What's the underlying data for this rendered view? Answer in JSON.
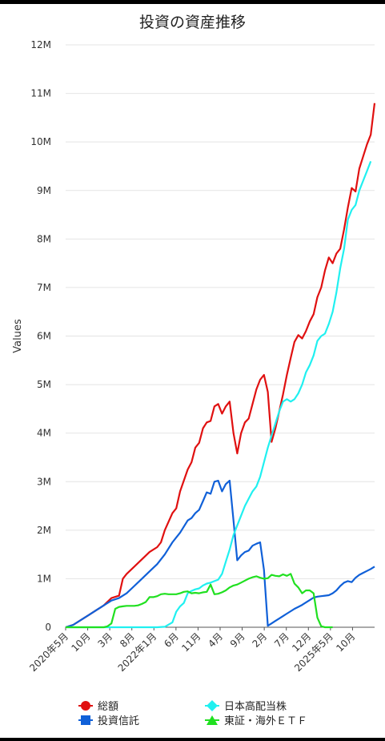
{
  "chart_data": {
    "type": "line",
    "title": "投資の資産推移",
    "ylabel": "Values",
    "ylim": [
      0,
      12000000
    ],
    "y_ticks": [
      "0",
      "1M",
      "2M",
      "3M",
      "4M",
      "5M",
      "6M",
      "7M",
      "8M",
      "9M",
      "10M",
      "11M",
      "12M"
    ],
    "x_tick_labels": [
      {
        "label": "2020年5月",
        "t": 0
      },
      {
        "label": "10月",
        "t": 5
      },
      {
        "label": "3月",
        "t": 10
      },
      {
        "label": "8月",
        "t": 15
      },
      {
        "label": "2022年1月",
        "t": 20
      },
      {
        "label": "6月",
        "t": 25
      },
      {
        "label": "11月",
        "t": 30
      },
      {
        "label": "4月",
        "t": 35
      },
      {
        "label": "9月",
        "t": 40
      },
      {
        "label": "2月",
        "t": 45
      },
      {
        "label": "7月",
        "t": 50
      },
      {
        "label": "12月",
        "t": 55
      },
      {
        "label": "2025年5月",
        "t": 60
      },
      {
        "label": "10月",
        "t": 65
      }
    ],
    "x_max": 70,
    "grid": true,
    "legend_position": "bottom",
    "series": [
      {
        "name": "総額",
        "color": "#e01010",
        "marker": "circle",
        "points": [
          [
            0,
            0
          ],
          [
            1,
            50000
          ],
          [
            2,
            150000
          ],
          [
            3,
            250000
          ],
          [
            4,
            350000
          ],
          [
            5,
            450000
          ],
          [
            6,
            600000
          ],
          [
            7,
            650000
          ],
          [
            7.5,
            1000000
          ],
          [
            8,
            1100000
          ],
          [
            9,
            1250000
          ],
          [
            10,
            1400000
          ],
          [
            11,
            1550000
          ],
          [
            12,
            1650000
          ],
          [
            12.5,
            1750000
          ],
          [
            13,
            2000000
          ],
          [
            14,
            2350000
          ],
          [
            14.5,
            2450000
          ],
          [
            15,
            2800000
          ],
          [
            16,
            3250000
          ],
          [
            16.5,
            3400000
          ],
          [
            17,
            3700000
          ],
          [
            17.5,
            3800000
          ],
          [
            18,
            4100000
          ],
          [
            18.5,
            4220000
          ],
          [
            19,
            4250000
          ],
          [
            19.5,
            4550000
          ],
          [
            20,
            4600000
          ],
          [
            20.5,
            4400000
          ],
          [
            21,
            4550000
          ],
          [
            21.5,
            4650000
          ],
          [
            22,
            4000000
          ],
          [
            22.5,
            3580000
          ],
          [
            23,
            4000000
          ],
          [
            23.5,
            4220000
          ],
          [
            24,
            4300000
          ],
          [
            24.5,
            4600000
          ],
          [
            25,
            4900000
          ],
          [
            25.5,
            5100000
          ],
          [
            26,
            5200000
          ],
          [
            26.5,
            4850000
          ],
          [
            27,
            3820000
          ],
          [
            27.5,
            4100000
          ],
          [
            28,
            4450000
          ],
          [
            28.5,
            4800000
          ],
          [
            29,
            5200000
          ],
          [
            29.5,
            5550000
          ],
          [
            30,
            5880000
          ],
          [
            30.5,
            6020000
          ],
          [
            31,
            5950000
          ],
          [
            31.5,
            6100000
          ],
          [
            32,
            6300000
          ],
          [
            32.5,
            6450000
          ],
          [
            33,
            6800000
          ],
          [
            33.5,
            7000000
          ],
          [
            34,
            7350000
          ],
          [
            34.5,
            7620000
          ],
          [
            35,
            7500000
          ],
          [
            35.5,
            7700000
          ],
          [
            36,
            7800000
          ],
          [
            36.5,
            8200000
          ],
          [
            37,
            8650000
          ],
          [
            37.5,
            9050000
          ],
          [
            38,
            8980000
          ],
          [
            38.5,
            9450000
          ],
          [
            39,
            9700000
          ],
          [
            39.5,
            9950000
          ],
          [
            40,
            10150000
          ],
          [
            40.5,
            10800000
          ]
        ]
      },
      {
        "name": "投資信託",
        "color": "#1060d8",
        "marker": "square",
        "points": [
          [
            0,
            0
          ],
          [
            1,
            50000
          ],
          [
            2,
            150000
          ],
          [
            3,
            250000
          ],
          [
            4,
            350000
          ],
          [
            5,
            450000
          ],
          [
            6,
            550000
          ],
          [
            7,
            600000
          ],
          [
            8,
            700000
          ],
          [
            9,
            850000
          ],
          [
            10,
            1000000
          ],
          [
            11,
            1150000
          ],
          [
            12,
            1300000
          ],
          [
            12.5,
            1400000
          ],
          [
            13,
            1500000
          ],
          [
            14,
            1750000
          ],
          [
            14.5,
            1850000
          ],
          [
            15,
            1950000
          ],
          [
            16,
            2200000
          ],
          [
            16.5,
            2250000
          ],
          [
            17,
            2350000
          ],
          [
            17.5,
            2420000
          ],
          [
            18,
            2600000
          ],
          [
            18.5,
            2780000
          ],
          [
            19,
            2750000
          ],
          [
            19.5,
            3000000
          ],
          [
            20,
            3020000
          ],
          [
            20.5,
            2800000
          ],
          [
            21,
            2950000
          ],
          [
            21.5,
            3020000
          ],
          [
            22,
            2200000
          ],
          [
            22.5,
            1380000
          ],
          [
            23,
            1480000
          ],
          [
            23.5,
            1550000
          ],
          [
            24,
            1580000
          ],
          [
            24.5,
            1680000
          ],
          [
            25,
            1720000
          ],
          [
            25.5,
            1750000
          ],
          [
            26,
            1180000
          ],
          [
            26.5,
            30000
          ],
          [
            27,
            80000
          ],
          [
            27.5,
            130000
          ],
          [
            28,
            180000
          ],
          [
            28.5,
            230000
          ],
          [
            29,
            280000
          ],
          [
            29.5,
            330000
          ],
          [
            30,
            380000
          ],
          [
            30.5,
            420000
          ],
          [
            31,
            460000
          ],
          [
            31.5,
            510000
          ],
          [
            32,
            560000
          ],
          [
            32.5,
            610000
          ],
          [
            33,
            630000
          ],
          [
            33.5,
            640000
          ],
          [
            34,
            650000
          ],
          [
            34.5,
            660000
          ],
          [
            35,
            700000
          ],
          [
            35.5,
            760000
          ],
          [
            36,
            850000
          ],
          [
            36.5,
            920000
          ],
          [
            37,
            950000
          ],
          [
            37.5,
            930000
          ],
          [
            38,
            1020000
          ],
          [
            38.5,
            1080000
          ],
          [
            39,
            1120000
          ],
          [
            39.5,
            1160000
          ],
          [
            40,
            1200000
          ],
          [
            40.5,
            1250000
          ]
        ]
      },
      {
        "name": "日本高配当株",
        "color": "#20f0f0",
        "marker": "diamond",
        "points": [
          [
            0,
            0
          ],
          [
            1,
            0
          ],
          [
            2,
            0
          ],
          [
            3,
            0
          ],
          [
            4,
            0
          ],
          [
            5,
            0
          ],
          [
            6,
            0
          ],
          [
            7,
            0
          ],
          [
            8,
            0
          ],
          [
            9,
            0
          ],
          [
            10,
            0
          ],
          [
            11,
            0
          ],
          [
            12,
            0
          ],
          [
            13,
            10000
          ],
          [
            14,
            100000
          ],
          [
            14.5,
            320000
          ],
          [
            15,
            430000
          ],
          [
            15.5,
            500000
          ],
          [
            16,
            700000
          ],
          [
            16.5,
            750000
          ],
          [
            17,
            780000
          ],
          [
            17.5,
            800000
          ],
          [
            18,
            860000
          ],
          [
            18.5,
            900000
          ],
          [
            19,
            920000
          ],
          [
            19.5,
            950000
          ],
          [
            20,
            980000
          ],
          [
            20.5,
            1100000
          ],
          [
            21,
            1350000
          ],
          [
            21.5,
            1600000
          ],
          [
            22,
            1900000
          ],
          [
            22.5,
            2100000
          ],
          [
            23,
            2300000
          ],
          [
            23.5,
            2500000
          ],
          [
            24,
            2650000
          ],
          [
            24.5,
            2800000
          ],
          [
            25,
            2900000
          ],
          [
            25.5,
            3100000
          ],
          [
            26,
            3400000
          ],
          [
            26.5,
            3700000
          ],
          [
            27,
            3950000
          ],
          [
            27.5,
            4200000
          ],
          [
            28,
            4450000
          ],
          [
            28.5,
            4650000
          ],
          [
            29,
            4700000
          ],
          [
            29.5,
            4650000
          ],
          [
            30,
            4700000
          ],
          [
            30.5,
            4820000
          ],
          [
            31,
            5000000
          ],
          [
            31.5,
            5250000
          ],
          [
            32,
            5400000
          ],
          [
            32.5,
            5600000
          ],
          [
            33,
            5900000
          ],
          [
            33.5,
            6000000
          ],
          [
            34,
            6050000
          ],
          [
            34.5,
            6250000
          ],
          [
            35,
            6500000
          ],
          [
            35.5,
            6900000
          ],
          [
            36,
            7400000
          ],
          [
            36.5,
            7800000
          ],
          [
            37,
            8400000
          ],
          [
            37.5,
            8600000
          ],
          [
            38,
            8700000
          ],
          [
            38.5,
            9000000
          ],
          [
            39,
            9200000
          ],
          [
            39.5,
            9400000
          ],
          [
            40,
            9600000
          ]
        ]
      },
      {
        "name": "東証・海外ＥＴＦ",
        "color": "#20e020",
        "marker": "triangle",
        "points": [
          [
            0,
            0
          ],
          [
            1,
            0
          ],
          [
            2,
            0
          ],
          [
            3,
            0
          ],
          [
            4,
            0
          ],
          [
            5,
            0
          ],
          [
            5.5,
            20000
          ],
          [
            6,
            80000
          ],
          [
            6.5,
            380000
          ],
          [
            7,
            420000
          ],
          [
            7.5,
            430000
          ],
          [
            8,
            440000
          ],
          [
            8.5,
            440000
          ],
          [
            9,
            440000
          ],
          [
            9.5,
            450000
          ],
          [
            10,
            480000
          ],
          [
            10.5,
            520000
          ],
          [
            11,
            620000
          ],
          [
            11.5,
            620000
          ],
          [
            12,
            640000
          ],
          [
            12.5,
            680000
          ],
          [
            13,
            690000
          ],
          [
            13.5,
            680000
          ],
          [
            14,
            680000
          ],
          [
            14.5,
            680000
          ],
          [
            15,
            700000
          ],
          [
            15.5,
            730000
          ],
          [
            16,
            740000
          ],
          [
            16.5,
            700000
          ],
          [
            17,
            710000
          ],
          [
            17.5,
            700000
          ],
          [
            18,
            720000
          ],
          [
            18.5,
            730000
          ],
          [
            19,
            880000
          ],
          [
            19.5,
            680000
          ],
          [
            20,
            690000
          ],
          [
            20.5,
            720000
          ],
          [
            21,
            760000
          ],
          [
            21.5,
            820000
          ],
          [
            22,
            860000
          ],
          [
            22.5,
            880000
          ],
          [
            23,
            920000
          ],
          [
            23.5,
            960000
          ],
          [
            24,
            1000000
          ],
          [
            24.5,
            1030000
          ],
          [
            25,
            1050000
          ],
          [
            25.5,
            1020000
          ],
          [
            26,
            1000000
          ],
          [
            26.5,
            1010000
          ],
          [
            27,
            1080000
          ],
          [
            27.5,
            1060000
          ],
          [
            28,
            1050000
          ],
          [
            28.5,
            1090000
          ],
          [
            29,
            1060000
          ],
          [
            29.5,
            1100000
          ],
          [
            30,
            900000
          ],
          [
            30.5,
            820000
          ],
          [
            31,
            700000
          ],
          [
            31.5,
            760000
          ],
          [
            32,
            760000
          ],
          [
            32.5,
            700000
          ],
          [
            33,
            200000
          ],
          [
            33.5,
            20000
          ],
          [
            34,
            0
          ],
          [
            34.5,
            0
          ],
          [
            35,
            0
          ]
        ]
      }
    ]
  }
}
